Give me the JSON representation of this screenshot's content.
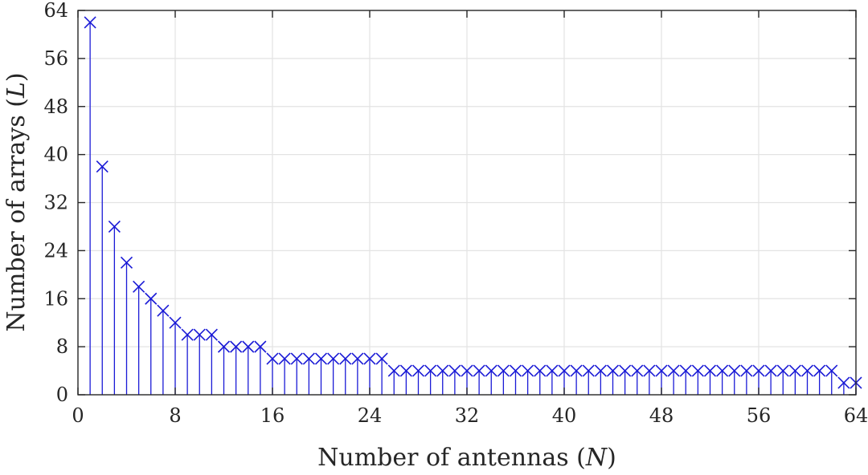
{
  "chart_data": {
    "type": "stem",
    "xlabel": "Number of antennas (N)",
    "ylabel": "Number of arrays (L)",
    "xlim": [
      0,
      64
    ],
    "ylim": [
      0,
      64
    ],
    "xticks": [
      0,
      8,
      16,
      24,
      32,
      40,
      48,
      56,
      64
    ],
    "yticks": [
      0,
      8,
      16,
      24,
      32,
      40,
      48,
      56,
      64
    ],
    "grid": true,
    "marker": "x",
    "color": "#1a1ad6",
    "series": [
      {
        "x": [
          1,
          2,
          3,
          4,
          5,
          6,
          7,
          8,
          9,
          10,
          11,
          12,
          13,
          14,
          15,
          16,
          17,
          18,
          19,
          20,
          21,
          22,
          23,
          24,
          25,
          26,
          27,
          28,
          29,
          30,
          31,
          32,
          33,
          34,
          35,
          36,
          37,
          38,
          39,
          40,
          41,
          42,
          43,
          44,
          45,
          46,
          47,
          48,
          49,
          50,
          51,
          52,
          53,
          54,
          55,
          56,
          57,
          58,
          59,
          60,
          61,
          62,
          63,
          64
        ],
        "values": [
          62,
          38,
          28,
          22,
          18,
          16,
          14,
          12,
          10,
          10,
          10,
          8,
          8,
          8,
          8,
          6,
          6,
          6,
          6,
          6,
          6,
          6,
          6,
          6,
          6,
          4,
          4,
          4,
          4,
          4,
          4,
          4,
          4,
          4,
          4,
          4,
          4,
          4,
          4,
          4,
          4,
          4,
          4,
          4,
          4,
          4,
          4,
          4,
          4,
          4,
          4,
          4,
          4,
          4,
          4,
          4,
          4,
          4,
          4,
          4,
          4,
          4,
          2,
          2
        ]
      }
    ]
  }
}
